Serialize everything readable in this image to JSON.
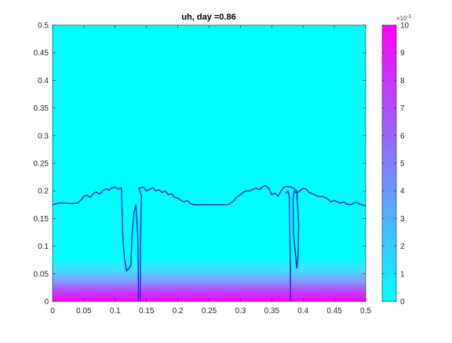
{
  "chart_data": {
    "type": "heatmap",
    "title": "uh, day =0.86",
    "xlabel": "",
    "ylabel": "",
    "xlim": [
      0,
      0.5
    ],
    "ylim": [
      0,
      0.5
    ],
    "xticks": [
      "0",
      "0.05",
      "0.1",
      "0.15",
      "0.2",
      "0.25",
      "0.3",
      "0.35",
      "0.4",
      "0.45",
      "0.5"
    ],
    "yticks": [
      "0",
      "0.05",
      "0.1",
      "0.15",
      "0.2",
      "0.25",
      "0.3",
      "0.35",
      "0.4",
      "0.45",
      "0.5"
    ],
    "grid": false,
    "colormap": "cool",
    "colormap_stops": [
      "#00ffff",
      "#ff00ff"
    ],
    "field": {
      "description_of_values": "uh is ~0 across most of the domain and rises toward 1e-4 near y=0",
      "profile_y": [
        0,
        0.01,
        0.02,
        0.03,
        0.04,
        0.05,
        0.06,
        0.07
      ],
      "profile_value_x1e5": [
        10,
        7.5,
        5,
        3,
        1.5,
        0.6,
        0.2,
        0
      ]
    },
    "colorbar": {
      "clim": [
        0,
        10
      ],
      "ticks": [
        "0",
        "1",
        "2",
        "3",
        "4",
        "5",
        "6",
        "7",
        "8",
        "9",
        "10"
      ],
      "exponent_base": "×10",
      "exponent_power": "-5"
    },
    "contour_color": "#1f1fd0",
    "contour": [
      [
        0.0,
        0.175
      ],
      [
        0.01,
        0.178
      ],
      [
        0.02,
        0.178
      ],
      [
        0.03,
        0.177
      ],
      [
        0.04,
        0.178
      ],
      [
        0.045,
        0.183
      ],
      [
        0.05,
        0.19
      ],
      [
        0.055,
        0.192
      ],
      [
        0.06,
        0.188
      ],
      [
        0.065,
        0.195
      ],
      [
        0.07,
        0.198
      ],
      [
        0.075,
        0.194
      ],
      [
        0.08,
        0.2
      ],
      [
        0.085,
        0.204
      ],
      [
        0.09,
        0.201
      ],
      [
        0.095,
        0.206
      ],
      [
        0.1,
        0.207
      ],
      [
        0.105,
        0.203
      ],
      [
        0.108,
        0.205
      ],
      [
        0.11,
        0.205
      ],
      [
        0.112,
        0.12
      ],
      [
        0.115,
        0.075
      ],
      [
        0.118,
        0.055
      ],
      [
        0.122,
        0.06
      ],
      [
        0.125,
        0.065
      ],
      [
        0.127,
        0.12
      ],
      [
        0.13,
        0.16
      ],
      [
        0.133,
        0.175
      ],
      [
        0.136,
        0.12
      ],
      [
        0.137,
        0.06
      ],
      [
        0.137,
        0.0
      ]
    ],
    "contour2": [
      [
        0.14,
        0.0
      ],
      [
        0.14,
        0.07
      ],
      [
        0.141,
        0.14
      ],
      [
        0.142,
        0.19
      ],
      [
        0.138,
        0.205
      ],
      [
        0.145,
        0.207
      ],
      [
        0.15,
        0.2
      ],
      [
        0.155,
        0.203
      ],
      [
        0.16,
        0.206
      ],
      [
        0.165,
        0.2
      ],
      [
        0.17,
        0.202
      ],
      [
        0.175,
        0.197
      ],
      [
        0.18,
        0.2
      ],
      [
        0.185,
        0.193
      ],
      [
        0.19,
        0.195
      ],
      [
        0.195,
        0.188
      ],
      [
        0.2,
        0.187
      ],
      [
        0.205,
        0.183
      ],
      [
        0.21,
        0.18
      ],
      [
        0.215,
        0.183
      ],
      [
        0.22,
        0.177
      ],
      [
        0.225,
        0.175
      ],
      [
        0.23,
        0.175
      ],
      [
        0.24,
        0.175
      ],
      [
        0.25,
        0.175
      ],
      [
        0.26,
        0.175
      ],
      [
        0.27,
        0.175
      ],
      [
        0.28,
        0.175
      ],
      [
        0.285,
        0.178
      ],
      [
        0.29,
        0.183
      ],
      [
        0.295,
        0.19
      ],
      [
        0.3,
        0.193
      ],
      [
        0.305,
        0.198
      ],
      [
        0.31,
        0.2
      ],
      [
        0.315,
        0.2
      ],
      [
        0.32,
        0.203
      ],
      [
        0.325,
        0.205
      ],
      [
        0.33,
        0.202
      ],
      [
        0.335,
        0.207
      ],
      [
        0.34,
        0.21
      ],
      [
        0.345,
        0.205
      ],
      [
        0.35,
        0.193
      ],
      [
        0.355,
        0.196
      ],
      [
        0.36,
        0.19
      ],
      [
        0.365,
        0.2
      ],
      [
        0.37,
        0.207
      ],
      [
        0.375,
        0.208
      ],
      [
        0.38,
        0.207
      ],
      [
        0.385,
        0.205
      ],
      [
        0.39,
        0.2
      ],
      [
        0.393,
        0.14
      ],
      [
        0.392,
        0.08
      ],
      [
        0.39,
        0.06
      ],
      [
        0.385,
        0.12
      ],
      [
        0.384,
        0.185
      ],
      [
        0.386,
        0.2
      ],
      [
        0.39,
        0.196
      ],
      [
        0.395,
        0.2
      ],
      [
        0.4,
        0.205
      ],
      [
        0.405,
        0.203
      ],
      [
        0.41,
        0.197
      ],
      [
        0.415,
        0.195
      ],
      [
        0.42,
        0.192
      ],
      [
        0.425,
        0.19
      ],
      [
        0.43,
        0.19
      ],
      [
        0.435,
        0.188
      ],
      [
        0.44,
        0.185
      ],
      [
        0.445,
        0.18
      ],
      [
        0.45,
        0.183
      ],
      [
        0.455,
        0.18
      ],
      [
        0.46,
        0.178
      ],
      [
        0.465,
        0.18
      ],
      [
        0.47,
        0.176
      ],
      [
        0.475,
        0.175
      ],
      [
        0.48,
        0.177
      ],
      [
        0.485,
        0.18
      ],
      [
        0.49,
        0.176
      ],
      [
        0.5,
        0.173
      ]
    ],
    "contour3": [
      [
        0.38,
        0.0
      ],
      [
        0.38,
        0.05
      ],
      [
        0.379,
        0.12
      ],
      [
        0.378,
        0.19
      ],
      [
        0.376,
        0.2
      ],
      [
        0.372,
        0.195
      ]
    ]
  }
}
